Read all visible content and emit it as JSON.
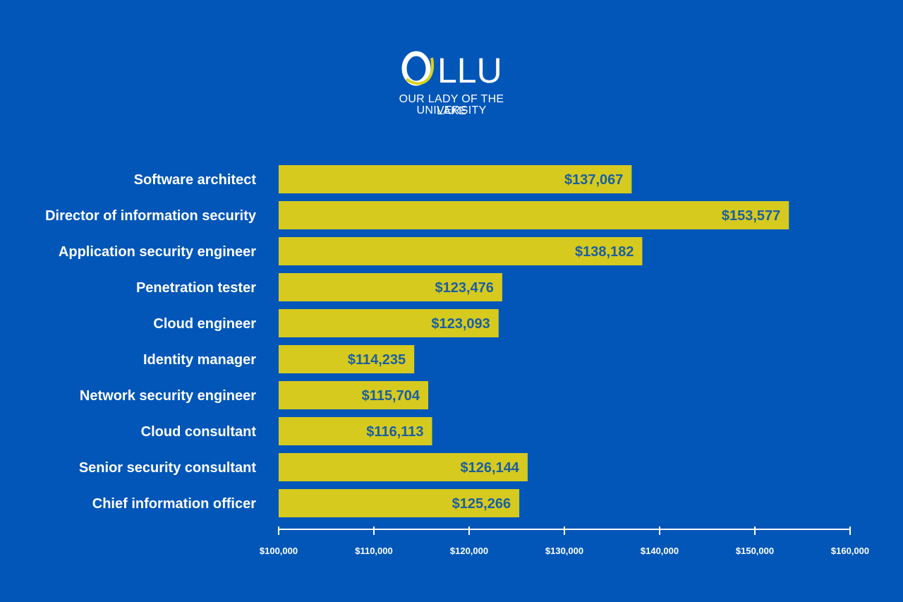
{
  "brand": {
    "logo_text": "OLLU",
    "name_line1": "OUR LADY OF THE LAKE",
    "name_line2": "UNIVERSITY",
    "colors": {
      "background": "#0156b8",
      "bar": "#d6ca1f",
      "value_label": "#1c5f9e",
      "text": "#ffffff",
      "logo_accent": "#d9d21e"
    }
  },
  "chart_data": {
    "type": "bar",
    "orientation": "horizontal",
    "categories": [
      "Software architect",
      "Director of information security",
      "Application security engineer",
      "Penetration tester",
      "Cloud engineer",
      "Identity manager",
      "Network security engineer",
      "Cloud consultant",
      "Senior security consultant",
      "Chief information officer"
    ],
    "values": [
      137067,
      153577,
      138182,
      123476,
      123093,
      114235,
      115704,
      116113,
      126144,
      125266
    ],
    "value_labels": [
      "$137,067",
      "$153,577",
      "$138,182",
      "$123,476",
      "$123,093",
      "$114,235",
      "$115,704",
      "$116,113",
      "$126,144",
      "$125,266"
    ],
    "xlim": [
      100000,
      160000
    ],
    "x_ticks": [
      100000,
      110000,
      120000,
      130000,
      140000,
      150000,
      160000
    ],
    "x_tick_labels": [
      "$100,000",
      "$110,000",
      "$120,000",
      "$130,000",
      "$140,000",
      "$150,000",
      "$160,000"
    ],
    "title": "",
    "xlabel": "",
    "ylabel": "",
    "grid": false,
    "legend": "none"
  }
}
